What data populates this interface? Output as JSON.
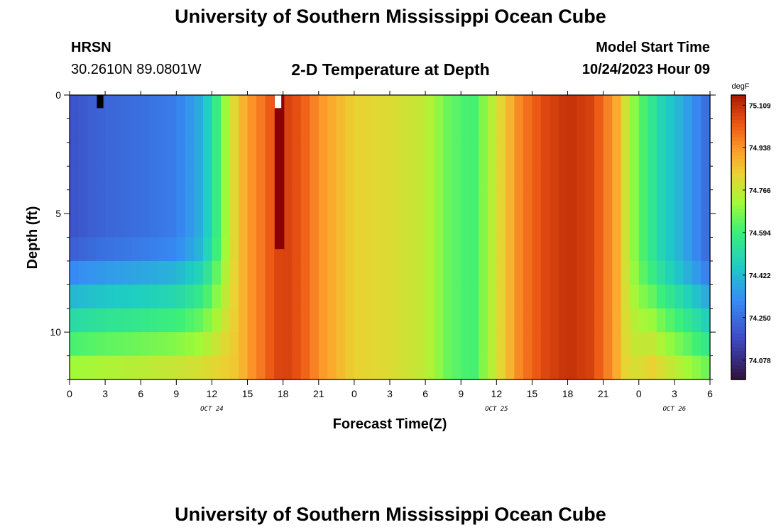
{
  "header": {
    "title": "University of Southern Mississippi Ocean Cube",
    "station": "HRSN",
    "coords": "30.2610N  89.0801W",
    "subtitle": "2-D Temperature at Depth",
    "model_label": "Model Start Time",
    "model_time": "10/24/2023 Hour 09"
  },
  "footer": {
    "title": "University of Southern Mississippi Ocean Cube"
  },
  "chart_data": {
    "type": "heatmap",
    "title": "2-D Temperature at Depth",
    "xlabel": "Forecast Time(Z)",
    "ylabel": "Depth (ft)",
    "x_range_hours": [
      0,
      54
    ],
    "y_range_ft": [
      0,
      12
    ],
    "x_ticks": [
      {
        "h": 0,
        "label": "0"
      },
      {
        "h": 3,
        "label": "3"
      },
      {
        "h": 6,
        "label": "6"
      },
      {
        "h": 9,
        "label": "9"
      },
      {
        "h": 12,
        "label": "12"
      },
      {
        "h": 15,
        "label": "15"
      },
      {
        "h": 18,
        "label": "18"
      },
      {
        "h": 21,
        "label": "21"
      },
      {
        "h": 24,
        "label": "0"
      },
      {
        "h": 27,
        "label": "3"
      },
      {
        "h": 30,
        "label": "6"
      },
      {
        "h": 33,
        "label": "9"
      },
      {
        "h": 36,
        "label": "12"
      },
      {
        "h": 39,
        "label": "15"
      },
      {
        "h": 42,
        "label": "18"
      },
      {
        "h": 45,
        "label": "21"
      },
      {
        "h": 48,
        "label": "0"
      },
      {
        "h": 51,
        "label": "3"
      },
      {
        "h": 54,
        "label": "6"
      }
    ],
    "date_labels": [
      {
        "h": 12,
        "label": "OCT 24"
      },
      {
        "h": 36,
        "label": "OCT 25"
      },
      {
        "h": 51,
        "label": "OCT 26"
      }
    ],
    "y_ticks": [
      {
        "v": 0,
        "label": "0"
      },
      {
        "v": 5,
        "label": "5"
      },
      {
        "v": 10,
        "label": "10"
      }
    ],
    "colorbar": {
      "unit": "degF",
      "min": 74.0,
      "max": 75.15,
      "labels": [
        "75.109",
        "74.938",
        "74.766",
        "74.594",
        "74.422",
        "74.250",
        "74.078"
      ]
    }
  }
}
